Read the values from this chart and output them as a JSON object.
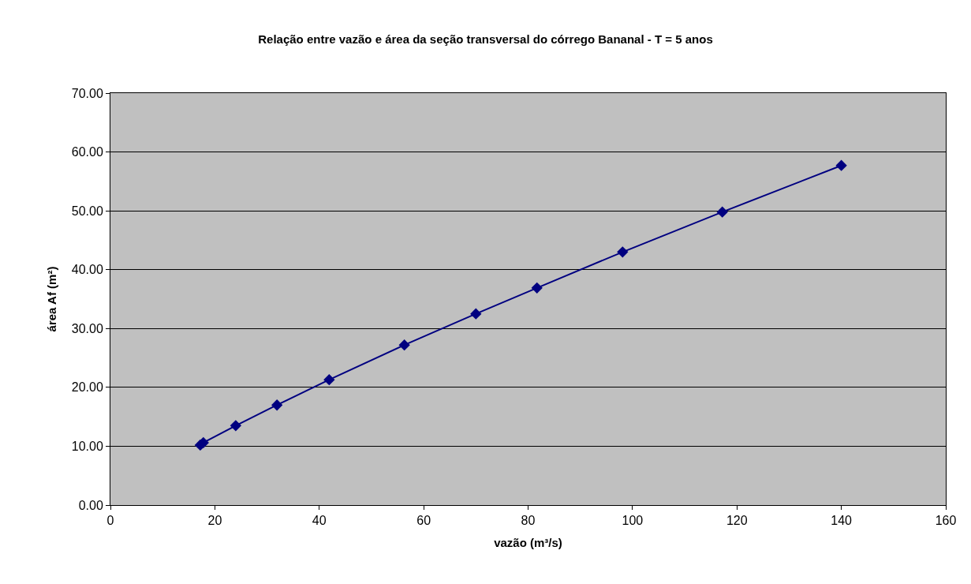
{
  "chart_data": {
    "type": "line",
    "title": "Relação entre vazão e área da seção transversal do córrego Bananal - T = 5 anos",
    "xlabel": "vazão (m³/s)",
    "ylabel": "área Af (m²)",
    "x": [
      17.2,
      17.8,
      24.0,
      31.9,
      41.9,
      56.3,
      70.0,
      81.7,
      98.1,
      117.2,
      140.0
    ],
    "series": [
      {
        "color": "#000080",
        "values": [
          10.2,
          10.6,
          13.5,
          17.0,
          21.3,
          27.2,
          32.5,
          36.9,
          43.0,
          49.8,
          57.7
        ]
      }
    ],
    "xlim": [
      0,
      160
    ],
    "xticks": [
      0,
      20,
      40,
      60,
      80,
      100,
      120,
      140,
      160
    ],
    "ylim": [
      0,
      70
    ],
    "yticks": [
      {
        "value": 0,
        "label": "0.00"
      },
      {
        "value": 10,
        "label": "10.00"
      },
      {
        "value": 20,
        "label": "20.00"
      },
      {
        "value": 30,
        "label": "30.00"
      },
      {
        "value": 40,
        "label": "40.00"
      },
      {
        "value": 50,
        "label": "50.00"
      },
      {
        "value": 60,
        "label": "60.00"
      },
      {
        "value": 70,
        "label": "70.00"
      }
    ],
    "grid": "y",
    "marker": "diamond",
    "line_style": "solid"
  }
}
